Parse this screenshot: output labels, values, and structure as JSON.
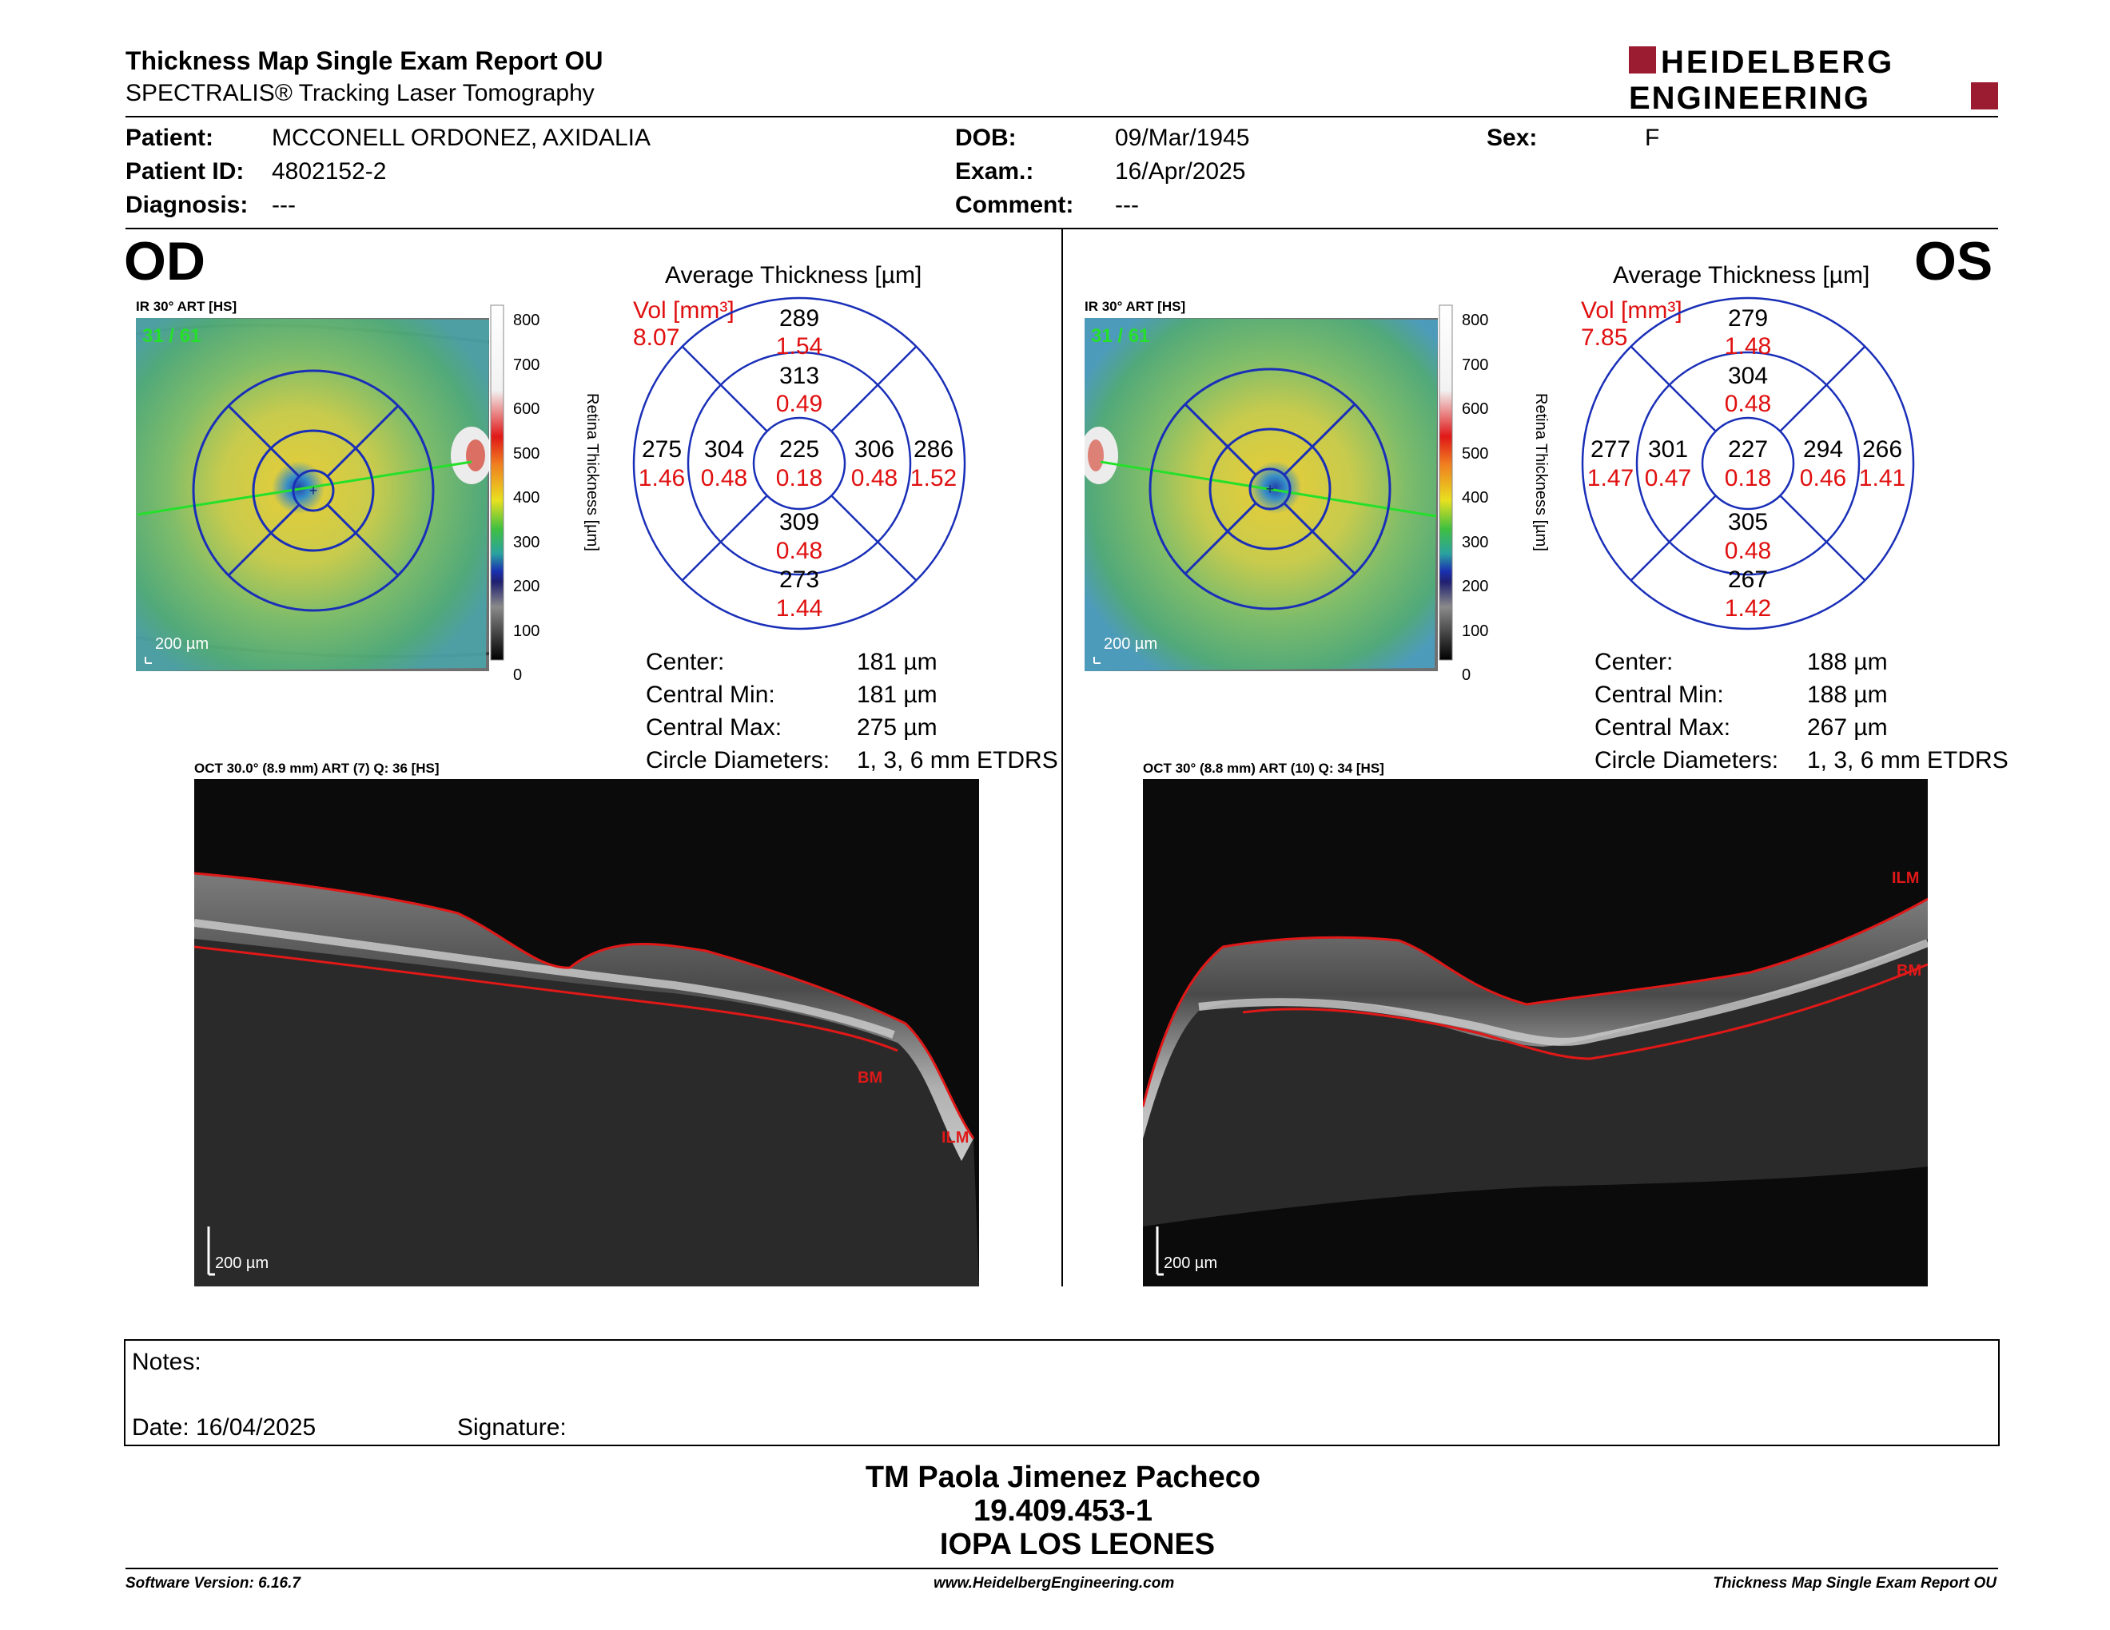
{
  "report": {
    "title": "Thickness Map Single Exam Report OU",
    "subtitle": "SPECTRALIS® Tracking Laser Tomography",
    "logo_line1": "HEIDELBERG",
    "logo_line2": "ENGINEERING",
    "brand_color": "#9b1b30"
  },
  "patient": {
    "patient_label": "Patient:",
    "patient_value": "MCCONELL ORDONEZ, AXIDALIA",
    "id_label": "Patient ID:",
    "id_value": "4802152-2",
    "diagnosis_label": "Diagnosis:",
    "diagnosis_value": "---",
    "dob_label": "DOB:",
    "dob_value": "09/Mar/1945",
    "exam_label": "Exam.:",
    "exam_value": "16/Apr/2025",
    "comment_label": "Comment:",
    "comment_value": "---",
    "sex_label": "Sex:",
    "sex_value": "F"
  },
  "od": {
    "eye": "OD",
    "ir_label": "IR 30° ART [HS]",
    "ir_counter": "31 / 61",
    "scale_bar": "200 µm",
    "colorbar_ticks": [
      "800",
      "700",
      "600",
      "500",
      "400",
      "300",
      "200",
      "100",
      "0"
    ],
    "colorbar_title": "Retina Thickness [µm]",
    "avg_title": "Average Thickness [µm]",
    "vol_label": "Vol [mm³]",
    "vol_total": "8.07",
    "etdrs": {
      "outer_sup": "289",
      "outer_sup_v": "1.54",
      "inner_sup": "313",
      "inner_sup_v": "0.49",
      "outer_temp": "275",
      "outer_temp_v": "1.46",
      "inner_temp": "304",
      "inner_temp_v": "0.48",
      "center": "225",
      "center_v": "0.18",
      "inner_nas": "306",
      "inner_nas_v": "0.48",
      "outer_nas": "286",
      "outer_nas_v": "1.52",
      "inner_inf": "309",
      "inner_inf_v": "0.48",
      "outer_inf": "273",
      "outer_inf_v": "1.44"
    },
    "stats": [
      {
        "label": "Center:",
        "value": "181 µm"
      },
      {
        "label": "Central Min:",
        "value": "181 µm"
      },
      {
        "label": "Central Max:",
        "value": "275 µm"
      },
      {
        "label": "Circle Diameters:",
        "value": "1, 3, 6 mm ETDRS"
      }
    ],
    "oct_label": "OCT 30.0° (8.9 mm) ART (7) Q: 36 [HS]",
    "oct_scale": "200 µm",
    "bm_label": "BM",
    "ilm_label": "ILM"
  },
  "os": {
    "eye": "OS",
    "ir_label": "IR 30° ART [HS]",
    "ir_counter": "31 / 61",
    "scale_bar": "200 µm",
    "colorbar_ticks": [
      "800",
      "700",
      "600",
      "500",
      "400",
      "300",
      "200",
      "100",
      "0"
    ],
    "colorbar_title": "Retina Thickness [µm]",
    "avg_title": "Average Thickness [µm]",
    "vol_label": "Vol [mm³]",
    "vol_total": "7.85",
    "etdrs": {
      "outer_sup": "279",
      "outer_sup_v": "1.48",
      "inner_sup": "304",
      "inner_sup_v": "0.48",
      "outer_temp": "277",
      "outer_temp_v": "1.47",
      "inner_temp": "301",
      "inner_temp_v": "0.47",
      "center": "227",
      "center_v": "0.18",
      "inner_nas": "294",
      "inner_nas_v": "0.46",
      "outer_nas": "266",
      "outer_nas_v": "1.41",
      "inner_inf": "305",
      "inner_inf_v": "0.48",
      "outer_inf": "267",
      "outer_inf_v": "1.42"
    },
    "stats": [
      {
        "label": "Center:",
        "value": "188 µm"
      },
      {
        "label": "Central Min:",
        "value": "188 µm"
      },
      {
        "label": "Central Max:",
        "value": "267 µm"
      },
      {
        "label": "Circle Diameters:",
        "value": "1, 3, 6 mm ETDRS"
      }
    ],
    "oct_label": "OCT 30° (8.8 mm) ART (10) Q: 34 [HS]",
    "oct_scale": "200 µm",
    "bm_label": "BM",
    "ilm_label": "ILM"
  },
  "notes": {
    "notes_label": "Notes:",
    "date_label": "Date: 16/04/2025",
    "signature_label": "Signature:"
  },
  "signature_block": {
    "name": "TM Paola Jimenez Pacheco",
    "rut": "19.409.453-1",
    "institution": "IOPA LOS LEONES"
  },
  "footer": {
    "software": "Software Version: 6.16.7",
    "website": "www.HeidelbergEngineering.com",
    "report_name": "Thickness Map Single Exam Report OU"
  }
}
